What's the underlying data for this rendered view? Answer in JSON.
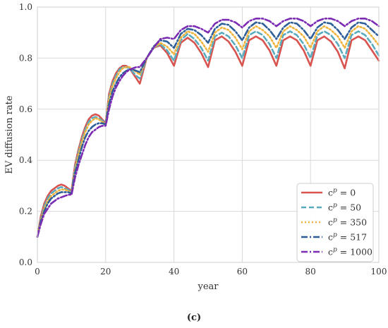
{
  "chart_data": {
    "type": "line",
    "xlabel": "year",
    "ylabel": "EV diffusion rate",
    "xlim": [
      0,
      100
    ],
    "ylim": [
      0.0,
      1.0
    ],
    "xticks": [
      "0",
      "20",
      "40",
      "60",
      "80",
      "100"
    ],
    "yticks": [
      "0.0",
      "0.2",
      "0.4",
      "0.6",
      "0.8",
      "1.0"
    ],
    "grid": true,
    "legend_position": "lower-right",
    "series": [
      {
        "name": "c^p = 0",
        "legend_label": "= 0",
        "color": "#d9534f",
        "dash": "solid",
        "x": [
          0,
          1,
          2,
          3,
          4,
          5,
          6,
          7,
          8,
          9,
          10,
          11,
          12,
          13,
          14,
          15,
          16,
          17,
          18,
          19,
          20,
          21,
          22,
          23,
          24,
          25,
          26,
          27,
          28,
          29,
          30,
          32,
          34,
          36,
          38,
          40,
          42,
          44,
          46,
          48,
          50,
          52,
          54,
          56,
          58,
          60,
          62,
          64,
          66,
          68,
          70,
          72,
          74,
          76,
          78,
          80,
          82,
          84,
          86,
          88,
          90,
          92,
          94,
          96,
          98,
          100
        ],
        "y": [
          0.1,
          0.18,
          0.23,
          0.26,
          0.28,
          0.29,
          0.3,
          0.305,
          0.3,
          0.29,
          0.28,
          0.38,
          0.44,
          0.49,
          0.53,
          0.56,
          0.575,
          0.58,
          0.575,
          0.56,
          0.545,
          0.66,
          0.71,
          0.74,
          0.76,
          0.77,
          0.77,
          0.76,
          0.74,
          0.72,
          0.7,
          0.8,
          0.84,
          0.85,
          0.82,
          0.77,
          0.86,
          0.88,
          0.86,
          0.82,
          0.765,
          0.87,
          0.885,
          0.865,
          0.825,
          0.77,
          0.87,
          0.885,
          0.87,
          0.83,
          0.77,
          0.87,
          0.885,
          0.87,
          0.83,
          0.77,
          0.87,
          0.885,
          0.865,
          0.825,
          0.76,
          0.87,
          0.885,
          0.87,
          0.83,
          0.79
        ]
      },
      {
        "name": "c^p = 50",
        "legend_label": "= 50",
        "color": "#5aabbd",
        "dash": "dashed",
        "x": [
          0,
          1,
          2,
          3,
          4,
          5,
          6,
          7,
          8,
          9,
          10,
          11,
          12,
          13,
          14,
          15,
          16,
          17,
          18,
          19,
          20,
          21,
          22,
          23,
          24,
          25,
          26,
          27,
          28,
          29,
          30,
          32,
          34,
          36,
          38,
          40,
          42,
          44,
          46,
          48,
          50,
          52,
          54,
          56,
          58,
          60,
          62,
          64,
          66,
          68,
          70,
          72,
          74,
          76,
          78,
          80,
          82,
          84,
          86,
          88,
          90,
          92,
          94,
          96,
          98,
          100
        ],
        "y": [
          0.1,
          0.17,
          0.22,
          0.25,
          0.27,
          0.28,
          0.29,
          0.295,
          0.29,
          0.285,
          0.275,
          0.37,
          0.43,
          0.48,
          0.52,
          0.55,
          0.565,
          0.57,
          0.565,
          0.555,
          0.545,
          0.65,
          0.7,
          0.73,
          0.755,
          0.765,
          0.765,
          0.76,
          0.745,
          0.73,
          0.72,
          0.8,
          0.84,
          0.855,
          0.83,
          0.79,
          0.87,
          0.895,
          0.875,
          0.84,
          0.79,
          0.885,
          0.9,
          0.885,
          0.85,
          0.8,
          0.89,
          0.905,
          0.89,
          0.855,
          0.8,
          0.89,
          0.905,
          0.89,
          0.855,
          0.8,
          0.89,
          0.905,
          0.89,
          0.855,
          0.8,
          0.89,
          0.905,
          0.89,
          0.855,
          0.81
        ]
      },
      {
        "name": "c^p = 350",
        "legend_label": "= 350",
        "color": "#f0b43c",
        "dash": "dotted",
        "x": [
          0,
          1,
          2,
          3,
          4,
          5,
          6,
          7,
          8,
          9,
          10,
          11,
          12,
          13,
          14,
          15,
          16,
          17,
          18,
          19,
          20,
          21,
          22,
          23,
          24,
          25,
          26,
          27,
          28,
          29,
          30,
          32,
          34,
          36,
          38,
          40,
          42,
          44,
          46,
          48,
          50,
          52,
          54,
          56,
          58,
          60,
          62,
          64,
          66,
          68,
          70,
          72,
          74,
          76,
          78,
          80,
          82,
          84,
          86,
          88,
          90,
          92,
          94,
          96,
          98,
          100
        ],
        "y": [
          0.1,
          0.165,
          0.21,
          0.24,
          0.26,
          0.27,
          0.28,
          0.285,
          0.285,
          0.28,
          0.27,
          0.36,
          0.42,
          0.47,
          0.51,
          0.54,
          0.555,
          0.565,
          0.56,
          0.55,
          0.54,
          0.64,
          0.69,
          0.72,
          0.745,
          0.76,
          0.765,
          0.765,
          0.755,
          0.745,
          0.735,
          0.8,
          0.84,
          0.86,
          0.845,
          0.815,
          0.88,
          0.905,
          0.895,
          0.865,
          0.825,
          0.9,
          0.92,
          0.91,
          0.88,
          0.835,
          0.905,
          0.925,
          0.91,
          0.885,
          0.84,
          0.905,
          0.925,
          0.91,
          0.885,
          0.84,
          0.905,
          0.925,
          0.91,
          0.885,
          0.84,
          0.905,
          0.925,
          0.915,
          0.885,
          0.85
        ]
      },
      {
        "name": "c^p = 517",
        "legend_label": "= 517",
        "color": "#2f5f99",
        "dash": "dashdot",
        "x": [
          0,
          1,
          2,
          3,
          4,
          5,
          6,
          7,
          8,
          9,
          10,
          11,
          12,
          13,
          14,
          15,
          16,
          17,
          18,
          19,
          20,
          21,
          22,
          23,
          24,
          25,
          26,
          27,
          28,
          29,
          30,
          32,
          34,
          36,
          38,
          40,
          42,
          44,
          46,
          48,
          50,
          52,
          54,
          56,
          58,
          60,
          62,
          64,
          66,
          68,
          70,
          72,
          74,
          76,
          78,
          80,
          82,
          84,
          86,
          88,
          90,
          92,
          94,
          96,
          98,
          100
        ],
        "y": [
          0.1,
          0.16,
          0.2,
          0.23,
          0.25,
          0.26,
          0.27,
          0.275,
          0.275,
          0.275,
          0.27,
          0.35,
          0.4,
          0.45,
          0.49,
          0.515,
          0.53,
          0.54,
          0.545,
          0.545,
          0.54,
          0.62,
          0.67,
          0.7,
          0.725,
          0.74,
          0.75,
          0.755,
          0.755,
          0.75,
          0.745,
          0.8,
          0.845,
          0.87,
          0.865,
          0.84,
          0.895,
          0.915,
          0.91,
          0.89,
          0.86,
          0.915,
          0.935,
          0.93,
          0.905,
          0.87,
          0.92,
          0.94,
          0.935,
          0.91,
          0.875,
          0.92,
          0.94,
          0.935,
          0.91,
          0.875,
          0.92,
          0.94,
          0.935,
          0.91,
          0.875,
          0.92,
          0.94,
          0.935,
          0.91,
          0.885
        ]
      },
      {
        "name": "c^p = 1000",
        "legend_label": "= 1000",
        "color": "#7b2cb3",
        "dash": "dashdot",
        "x": [
          0,
          1,
          2,
          3,
          4,
          5,
          6,
          7,
          8,
          9,
          10,
          11,
          12,
          13,
          14,
          15,
          16,
          17,
          18,
          19,
          20,
          21,
          22,
          23,
          24,
          25,
          26,
          27,
          28,
          29,
          30,
          32,
          34,
          36,
          38,
          40,
          42,
          44,
          46,
          48,
          50,
          52,
          54,
          56,
          58,
          60,
          62,
          64,
          66,
          68,
          70,
          72,
          74,
          76,
          78,
          80,
          82,
          84,
          86,
          88,
          90,
          92,
          94,
          96,
          98,
          100
        ],
        "y": [
          0.1,
          0.15,
          0.19,
          0.21,
          0.23,
          0.24,
          0.25,
          0.255,
          0.26,
          0.265,
          0.265,
          0.33,
          0.38,
          0.42,
          0.46,
          0.49,
          0.51,
          0.52,
          0.53,
          0.535,
          0.535,
          0.6,
          0.65,
          0.685,
          0.71,
          0.73,
          0.745,
          0.755,
          0.76,
          0.765,
          0.765,
          0.8,
          0.84,
          0.875,
          0.88,
          0.875,
          0.91,
          0.925,
          0.925,
          0.915,
          0.9,
          0.935,
          0.95,
          0.95,
          0.94,
          0.92,
          0.945,
          0.955,
          0.955,
          0.945,
          0.925,
          0.945,
          0.955,
          0.955,
          0.945,
          0.925,
          0.945,
          0.955,
          0.955,
          0.945,
          0.925,
          0.945,
          0.955,
          0.955,
          0.945,
          0.925
        ]
      }
    ]
  },
  "caption": "(c)"
}
